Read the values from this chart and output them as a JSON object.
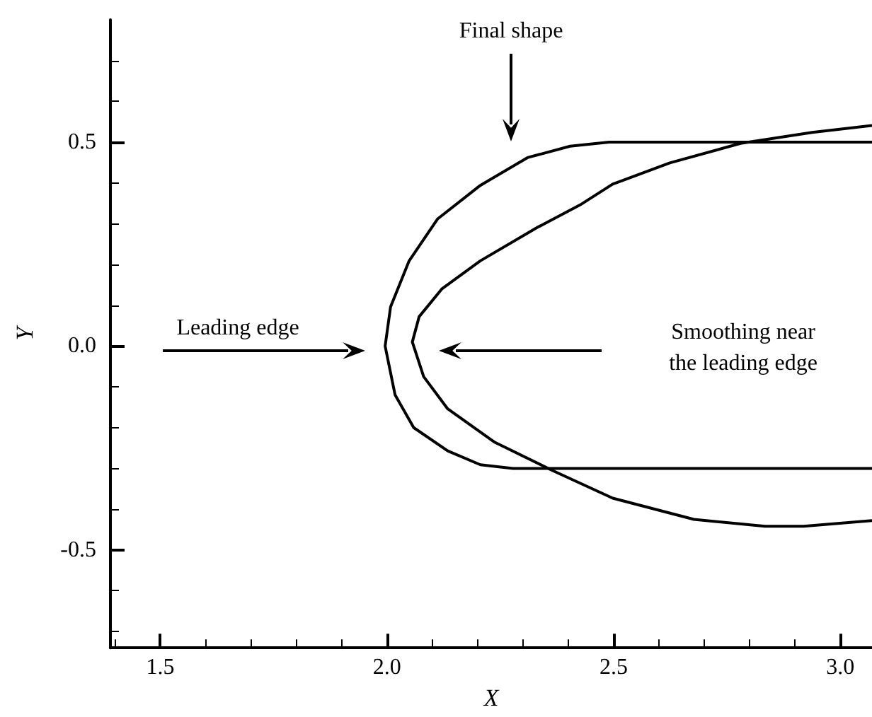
{
  "chart_data": {
    "type": "line",
    "xlabel": "X",
    "ylabel": "Y",
    "xlim": [
      1.39,
      3.07
    ],
    "ylim": [
      -0.74,
      0.8
    ],
    "xticks": [
      {
        "value": 1.4,
        "label": null
      },
      1.5,
      {
        "value": 1.6,
        "label": null
      },
      {
        "value": 1.7,
        "label": null
      },
      {
        "value": 1.8,
        "label": null
      },
      {
        "value": 1.9,
        "label": null
      },
      {
        "value": 2,
        "label": "2.0"
      },
      {
        "value": 2.1,
        "label": null
      },
      {
        "value": 2.2,
        "label": null
      },
      {
        "value": 2.3,
        "label": null
      },
      {
        "value": 2.4,
        "label": null
      },
      2.5,
      {
        "value": 2.6,
        "label": null
      },
      {
        "value": 2.7,
        "label": null
      },
      {
        "value": 2.8,
        "label": null
      },
      {
        "value": 2.9,
        "label": null
      },
      {
        "value": 3,
        "label": "3.0"
      }
    ],
    "yticks": [
      {
        "value": -0.7,
        "label": null
      },
      {
        "value": -0.6,
        "label": null
      },
      -0.5,
      {
        "value": -0.4,
        "label": null
      },
      {
        "value": -0.3,
        "label": null
      },
      {
        "value": -0.2,
        "label": null
      },
      {
        "value": -0.1,
        "label": null
      },
      {
        "value": 0,
        "label": "0.0"
      },
      {
        "value": 0.1,
        "label": null
      },
      {
        "value": 0.2,
        "label": null
      },
      {
        "value": 0.3,
        "label": null
      },
      {
        "value": 0.4,
        "label": null
      },
      0.5,
      {
        "value": 0.6,
        "label": null
      },
      {
        "value": 0.7,
        "label": null
      }
    ],
    "series": [
      {
        "color": "#000000",
        "x": [
          3.07,
          2.49,
          2.404,
          2.31,
          2.206,
          2.112,
          2.049,
          2.008,
          1.996,
          2.018,
          2.059,
          2.134,
          2.206,
          2.278,
          3.07
        ],
        "values": [
          0.5,
          0.5,
          0.49,
          0.462,
          0.394,
          0.312,
          0.209,
          0.096,
          0,
          -0.12,
          -0.2,
          -0.257,
          -0.291,
          -0.3,
          -0.3
        ]
      },
      {
        "color": "#000000",
        "x": [
          3.07,
          2.938,
          2.78,
          2.624,
          2.498,
          2.426,
          2.332,
          2.206,
          2.121,
          2.071,
          2.056,
          2.081,
          2.134,
          2.238,
          2.363,
          2.498,
          2.677,
          2.834,
          2.919,
          3.07
        ],
        "values": [
          0.541,
          0.524,
          0.497,
          0.449,
          0.397,
          0.346,
          0.291,
          0.209,
          0.14,
          0.072,
          0.01,
          -0.075,
          -0.154,
          -0.236,
          -0.304,
          -0.373,
          -0.425,
          -0.442,
          -0.442,
          -0.428
        ]
      }
    ],
    "annotations": [
      "Final shape",
      "Leading edge",
      "Smoothing near\nthe leading edge"
    ]
  }
}
